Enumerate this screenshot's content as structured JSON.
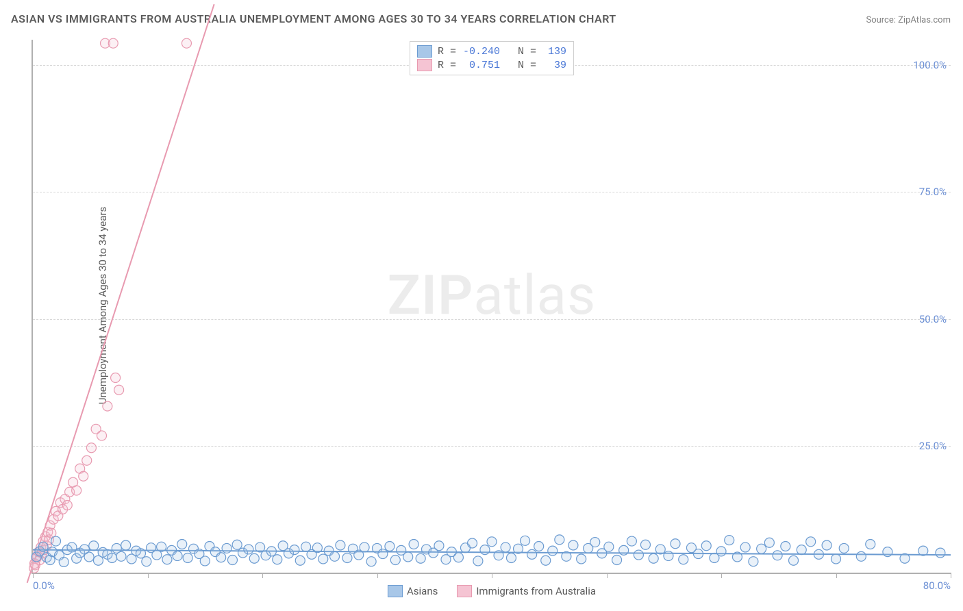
{
  "title": "ASIAN VS IMMIGRANTS FROM AUSTRALIA UNEMPLOYMENT AMONG AGES 30 TO 34 YEARS CORRELATION CHART",
  "source": "Source: ZipAtlas.com",
  "ylabel": "Unemployment Among Ages 30 to 34 years",
  "watermark_bold": "ZIP",
  "watermark_light": "atlas",
  "chart": {
    "type": "scatter",
    "background_color": "#ffffff",
    "grid_color": "#d8d8d8",
    "axis_color": "#b0b0b0",
    "tick_label_color": "#6b8fd4",
    "xlim": [
      0,
      80
    ],
    "ylim": [
      0,
      105
    ],
    "xtick_major": [
      0,
      80
    ],
    "xtick_minor_step": 10,
    "ytick_labels": [
      "25.0%",
      "50.0%",
      "75.0%",
      "100.0%"
    ],
    "ytick_positions": [
      25,
      50,
      75,
      100
    ],
    "xtick_labels": [
      "0.0%",
      "80.0%"
    ],
    "marker_radius": 7,
    "marker_fill_opacity": 0.25,
    "marker_stroke_width": 1.2,
    "line_width": 2
  },
  "series": {
    "asians": {
      "label": "Asians",
      "color": "#6b9bd1",
      "fill": "#a8c7e8",
      "R": "-0.240",
      "N": "139",
      "trend": {
        "x1": 0,
        "y1": 4.5,
        "x2": 80,
        "y2": 3.5
      },
      "points": [
        [
          0.3,
          3.1
        ],
        [
          0.6,
          4.2
        ],
        [
          0.9,
          5.1
        ],
        [
          1.2,
          3.0
        ],
        [
          1.5,
          2.5
        ],
        [
          1.7,
          4.1
        ],
        [
          2.0,
          6.2
        ],
        [
          2.3,
          3.4
        ],
        [
          2.7,
          2.1
        ],
        [
          3.0,
          4.5
        ],
        [
          3.4,
          5.0
        ],
        [
          3.8,
          2.8
        ],
        [
          4.1,
          3.9
        ],
        [
          4.5,
          4.6
        ],
        [
          4.9,
          3.1
        ],
        [
          5.3,
          5.3
        ],
        [
          5.7,
          2.4
        ],
        [
          6.1,
          4.0
        ],
        [
          6.5,
          3.6
        ],
        [
          6.9,
          2.9
        ],
        [
          7.3,
          4.8
        ],
        [
          7.7,
          3.2
        ],
        [
          8.1,
          5.4
        ],
        [
          8.6,
          2.7
        ],
        [
          9.0,
          4.3
        ],
        [
          9.4,
          3.8
        ],
        [
          9.9,
          2.2
        ],
        [
          10.3,
          4.9
        ],
        [
          10.8,
          3.5
        ],
        [
          11.2,
          5.1
        ],
        [
          11.7,
          2.6
        ],
        [
          12.1,
          4.4
        ],
        [
          12.6,
          3.3
        ],
        [
          13.0,
          5.6
        ],
        [
          13.5,
          2.9
        ],
        [
          14.0,
          4.7
        ],
        [
          14.5,
          3.7
        ],
        [
          15.0,
          2.3
        ],
        [
          15.4,
          5.2
        ],
        [
          15.9,
          4.1
        ],
        [
          16.4,
          3.0
        ],
        [
          16.9,
          4.8
        ],
        [
          17.4,
          2.5
        ],
        [
          17.8,
          5.5
        ],
        [
          18.3,
          3.9
        ],
        [
          18.8,
          4.6
        ],
        [
          19.3,
          2.8
        ],
        [
          19.8,
          5.0
        ],
        [
          20.3,
          3.4
        ],
        [
          20.8,
          4.2
        ],
        [
          21.3,
          2.6
        ],
        [
          21.8,
          5.3
        ],
        [
          22.3,
          3.8
        ],
        [
          22.8,
          4.5
        ],
        [
          23.3,
          2.4
        ],
        [
          23.8,
          5.1
        ],
        [
          24.3,
          3.6
        ],
        [
          24.8,
          4.9
        ],
        [
          25.3,
          2.7
        ],
        [
          25.8,
          4.3
        ],
        [
          26.3,
          3.2
        ],
        [
          26.8,
          5.4
        ],
        [
          27.4,
          2.9
        ],
        [
          27.9,
          4.7
        ],
        [
          28.4,
          3.5
        ],
        [
          28.9,
          5.0
        ],
        [
          29.5,
          2.2
        ],
        [
          30.0,
          4.8
        ],
        [
          30.5,
          3.7
        ],
        [
          31.1,
          5.2
        ],
        [
          31.6,
          2.5
        ],
        [
          32.1,
          4.4
        ],
        [
          32.7,
          3.1
        ],
        [
          33.2,
          5.6
        ],
        [
          33.8,
          2.8
        ],
        [
          34.3,
          4.6
        ],
        [
          34.9,
          3.9
        ],
        [
          35.4,
          5.3
        ],
        [
          36.0,
          2.6
        ],
        [
          36.5,
          4.1
        ],
        [
          37.1,
          3.0
        ],
        [
          37.7,
          4.9
        ],
        [
          38.3,
          5.8
        ],
        [
          38.8,
          2.3
        ],
        [
          39.4,
          4.5
        ],
        [
          40.0,
          6.1
        ],
        [
          40.6,
          3.4
        ],
        [
          41.2,
          5.0
        ],
        [
          41.7,
          2.9
        ],
        [
          42.3,
          4.7
        ],
        [
          42.9,
          6.3
        ],
        [
          43.5,
          3.6
        ],
        [
          44.1,
          5.2
        ],
        [
          44.7,
          2.4
        ],
        [
          45.3,
          4.3
        ],
        [
          45.9,
          6.5
        ],
        [
          46.5,
          3.2
        ],
        [
          47.1,
          5.4
        ],
        [
          47.8,
          2.7
        ],
        [
          48.4,
          4.8
        ],
        [
          49.0,
          6.0
        ],
        [
          49.6,
          3.8
        ],
        [
          50.2,
          5.1
        ],
        [
          50.9,
          2.5
        ],
        [
          51.5,
          4.4
        ],
        [
          52.2,
          6.2
        ],
        [
          52.8,
          3.5
        ],
        [
          53.4,
          5.5
        ],
        [
          54.1,
          2.8
        ],
        [
          54.7,
          4.6
        ],
        [
          55.4,
          3.3
        ],
        [
          56.0,
          5.7
        ],
        [
          56.7,
          2.6
        ],
        [
          57.4,
          4.9
        ],
        [
          58.0,
          3.7
        ],
        [
          58.7,
          5.3
        ],
        [
          59.4,
          2.9
        ],
        [
          60.0,
          4.2
        ],
        [
          60.7,
          6.4
        ],
        [
          61.4,
          3.1
        ],
        [
          62.1,
          5.0
        ],
        [
          62.8,
          2.2
        ],
        [
          63.5,
          4.7
        ],
        [
          64.2,
          5.9
        ],
        [
          64.9,
          3.4
        ],
        [
          65.6,
          5.2
        ],
        [
          66.3,
          2.4
        ],
        [
          67.0,
          4.5
        ],
        [
          67.8,
          6.1
        ],
        [
          68.5,
          3.6
        ],
        [
          69.2,
          5.4
        ],
        [
          70.0,
          2.7
        ],
        [
          70.7,
          4.8
        ],
        [
          72.2,
          3.2
        ],
        [
          73.0,
          5.6
        ],
        [
          74.5,
          4.1
        ],
        [
          76.0,
          2.8
        ],
        [
          77.6,
          4.3
        ],
        [
          79.1,
          3.9
        ]
      ]
    },
    "immigrants": {
      "label": "Immigrants from Australia",
      "color": "#e89ab0",
      "fill": "#f5c4d3",
      "R": "0.751",
      "N": "39",
      "trend": {
        "x1": -0.5,
        "y1": -2,
        "x2": 15.8,
        "y2": 112
      },
      "points": [
        [
          0.2,
          1.5
        ],
        [
          0.3,
          2.8
        ],
        [
          0.4,
          3.2
        ],
        [
          0.5,
          4.1
        ],
        [
          0.6,
          2.5
        ],
        [
          0.7,
          5.0
        ],
        [
          0.8,
          3.8
        ],
        [
          0.9,
          6.2
        ],
        [
          1.0,
          4.5
        ],
        [
          1.1,
          7.1
        ],
        [
          1.2,
          5.3
        ],
        [
          1.3,
          8.0
        ],
        [
          1.4,
          6.5
        ],
        [
          1.5,
          9.3
        ],
        [
          1.6,
          7.8
        ],
        [
          1.8,
          10.5
        ],
        [
          2.0,
          12.1
        ],
        [
          2.2,
          11.2
        ],
        [
          2.4,
          13.8
        ],
        [
          2.6,
          12.5
        ],
        [
          2.8,
          14.5
        ],
        [
          3.0,
          13.3
        ],
        [
          3.2,
          15.9
        ],
        [
          3.5,
          17.8
        ],
        [
          3.8,
          16.2
        ],
        [
          4.1,
          20.5
        ],
        [
          4.4,
          19.0
        ],
        [
          4.7,
          22.1
        ],
        [
          5.1,
          24.6
        ],
        [
          5.5,
          28.3
        ],
        [
          6.0,
          27.0
        ],
        [
          6.5,
          32.8
        ],
        [
          7.2,
          38.4
        ],
        [
          7.5,
          36.0
        ],
        [
          6.3,
          104.3
        ],
        [
          7.0,
          104.3
        ],
        [
          13.4,
          104.3
        ],
        [
          0.1,
          0.9
        ],
        [
          0.15,
          1.8
        ]
      ]
    }
  },
  "legend_top": {
    "R_prefix": "R =",
    "N_prefix": "N ="
  }
}
